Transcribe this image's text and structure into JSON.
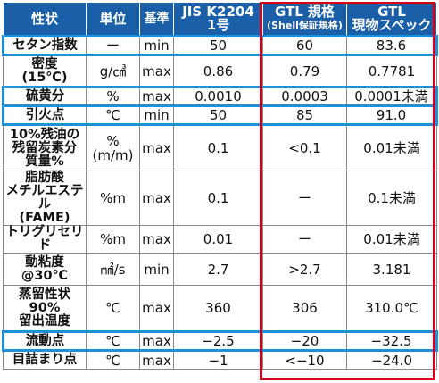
{
  "colors": {
    "header_bg": "#1a5fa8",
    "highlight_row": "#1d90d8",
    "gtl_frame": "#d9001b"
  },
  "header": {
    "property": "性状",
    "unit": "単位",
    "standard": "基準",
    "jis_line1": "JIS K2204",
    "jis_line2": "1号",
    "gtl_line1": "GTL 規格",
    "gtl_line2": "(Shell保証規格)",
    "spec_line1": "GTL",
    "spec_line2": "現物スペック"
  },
  "rows": [
    {
      "property": [
        "セタン指数"
      ],
      "unit": "ー",
      "std": "min",
      "jis": "50",
      "gtl": "60",
      "spec": "83.6",
      "highlight": true
    },
    {
      "property": [
        "密度",
        "(15℃)"
      ],
      "unit": "g/㎤",
      "std": "max",
      "jis": "0.86",
      "gtl": "0.79",
      "spec": "0.7781",
      "highlight": false
    },
    {
      "property": [
        "硫黄分"
      ],
      "unit": "%",
      "std": "max",
      "jis": "0.0010",
      "gtl": "0.0003",
      "spec": "0.0001未満",
      "highlight": true
    },
    {
      "property": [
        "引火点"
      ],
      "unit": "℃",
      "std": "min",
      "jis": "50",
      "gtl": "85",
      "spec": "91.0",
      "highlight": true
    },
    {
      "property": [
        "10%残油の",
        "残留炭素分",
        "質量%"
      ],
      "unit": "%\n(m/m)",
      "std": "max",
      "jis": "0.1",
      "gtl": "<0.1",
      "spec": "0.01未満",
      "highlight": false
    },
    {
      "property": [
        "脂肪酸",
        "メチルエステル",
        "(FAME)"
      ],
      "unit": "%m",
      "std": "max",
      "jis": "0.1",
      "gtl": "ー",
      "spec": "0.1未満",
      "highlight": false
    },
    {
      "property": [
        "トリグリセリド"
      ],
      "unit": "%m",
      "std": "max",
      "jis": "0.01",
      "gtl": "ー",
      "spec": "0.01未満",
      "highlight": false
    },
    {
      "property": [
        "動粘度",
        "@30℃"
      ],
      "unit": "㎟/s",
      "std": "min",
      "jis": "2.7",
      "gtl": ">2.7",
      "spec": "3.181",
      "highlight": false
    },
    {
      "property": [
        "蒸留性状",
        "90%",
        "留出温度"
      ],
      "unit": "℃",
      "std": "max",
      "jis": "360",
      "gtl": "306",
      "spec": "310.0℃",
      "highlight": false
    },
    {
      "property": [
        "流動点"
      ],
      "unit": "℃",
      "std": "max",
      "jis": "−2.5",
      "gtl": "−20",
      "spec": "−32.5",
      "highlight": true
    },
    {
      "property": [
        "目詰まり点"
      ],
      "unit": "℃",
      "std": "max",
      "jis": "−1",
      "gtl": "<−10",
      "spec": "−24.0",
      "highlight": false
    }
  ]
}
